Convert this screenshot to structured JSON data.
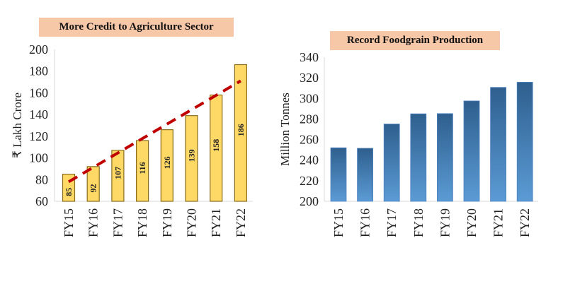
{
  "chart_data": [
    {
      "type": "bar",
      "title": "More Credit to Agriculture Sector",
      "xlabel": "",
      "ylabel": "₹ Lakh Crore",
      "categories": [
        "FY15",
        "FY16",
        "FY17",
        "FY18",
        "FY19",
        "FY20",
        "FY21",
        "FY22"
      ],
      "values": [
        85,
        92,
        107,
        116,
        126,
        139,
        158,
        186
      ],
      "data_labels": [
        "85",
        "92",
        "107",
        "116",
        "126",
        "139",
        "158",
        "186"
      ],
      "ylim": [
        60,
        200
      ],
      "yticks": [
        60,
        80,
        100,
        120,
        140,
        160,
        180,
        200
      ],
      "grid": false,
      "trendline": {
        "style": "dashed",
        "color": "#c00000",
        "from": 78,
        "to": 171
      },
      "colors": {
        "bar": "#ffd966",
        "bar_border": "#8a6d1c"
      }
    },
    {
      "type": "bar",
      "title": "Record Foodgrain Production",
      "xlabel": "",
      "ylabel": "Million Tonnes",
      "categories": [
        "FY15",
        "FY16",
        "FY17",
        "FY18",
        "FY19",
        "FY20",
        "FY21",
        "FY22"
      ],
      "values": [
        252.0,
        251.5,
        275.1,
        285.0,
        285.2,
        297.5,
        310.7,
        315.7
      ],
      "ylim": [
        200,
        340
      ],
      "yticks": [
        200,
        220,
        240,
        260,
        280,
        300,
        320,
        340
      ],
      "grid": false,
      "colors": {
        "bar_top": "#2e5f8e",
        "bar_bottom": "#5b9bd5"
      }
    }
  ]
}
